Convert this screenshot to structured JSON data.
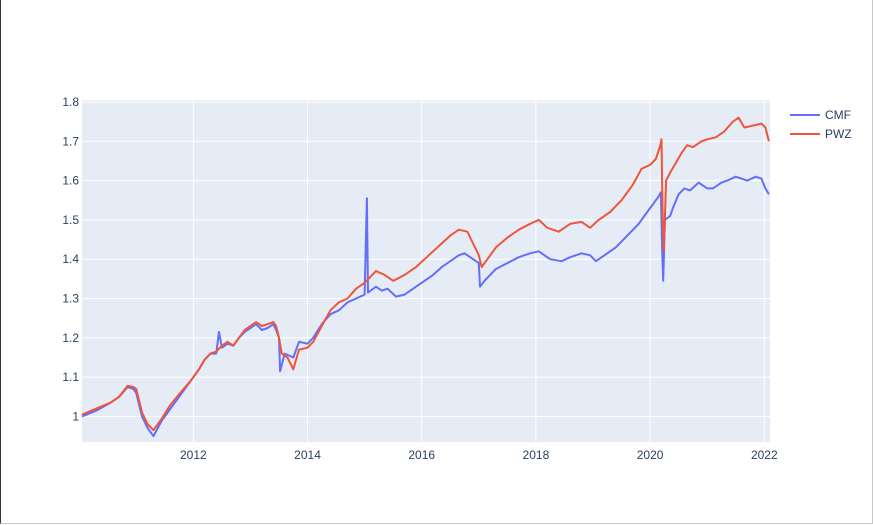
{
  "chart_data": {
    "type": "line",
    "title": "",
    "xlabel": "",
    "ylabel": "",
    "x_ticks": [
      "2012",
      "2014",
      "2016",
      "2018",
      "2020",
      "2022"
    ],
    "y_ticks": [
      "1",
      "1.1",
      "1.2",
      "1.3",
      "1.4",
      "1.5",
      "1.6",
      "1.7",
      "1.8"
    ],
    "xlim": [
      2010.05,
      2022.1
    ],
    "ylim": [
      0.935,
      1.805
    ],
    "grid": true,
    "legend_position": "top-right",
    "series": [
      {
        "name": "CMF",
        "color": "#636efa",
        "points": [
          [
            2010.05,
            1.0
          ],
          [
            2010.3,
            1.015
          ],
          [
            2010.55,
            1.035
          ],
          [
            2010.7,
            1.05
          ],
          [
            2010.85,
            1.075
          ],
          [
            2010.95,
            1.07
          ],
          [
            2011.0,
            1.06
          ],
          [
            2011.1,
            1.0
          ],
          [
            2011.2,
            0.97
          ],
          [
            2011.3,
            0.95
          ],
          [
            2011.45,
            0.99
          ],
          [
            2011.6,
            1.02
          ],
          [
            2011.8,
            1.06
          ],
          [
            2011.95,
            1.09
          ],
          [
            2012.1,
            1.12
          ],
          [
            2012.2,
            1.145
          ],
          [
            2012.3,
            1.16
          ],
          [
            2012.4,
            1.16
          ],
          [
            2012.45,
            1.215
          ],
          [
            2012.5,
            1.175
          ],
          [
            2012.6,
            1.185
          ],
          [
            2012.7,
            1.18
          ],
          [
            2012.8,
            1.2
          ],
          [
            2012.9,
            1.215
          ],
          [
            2013.0,
            1.225
          ],
          [
            2013.1,
            1.235
          ],
          [
            2013.2,
            1.22
          ],
          [
            2013.3,
            1.225
          ],
          [
            2013.4,
            1.235
          ],
          [
            2013.45,
            1.22
          ],
          [
            2013.5,
            1.2
          ],
          [
            2013.52,
            1.115
          ],
          [
            2013.6,
            1.16
          ],
          [
            2013.75,
            1.15
          ],
          [
            2013.85,
            1.19
          ],
          [
            2014.0,
            1.185
          ],
          [
            2014.1,
            1.2
          ],
          [
            2014.25,
            1.235
          ],
          [
            2014.4,
            1.26
          ],
          [
            2014.55,
            1.27
          ],
          [
            2014.7,
            1.29
          ],
          [
            2014.85,
            1.3
          ],
          [
            2015.0,
            1.31
          ],
          [
            2015.04,
            1.555
          ],
          [
            2015.06,
            1.315
          ],
          [
            2015.2,
            1.33
          ],
          [
            2015.3,
            1.32
          ],
          [
            2015.4,
            1.325
          ],
          [
            2015.55,
            1.305
          ],
          [
            2015.7,
            1.31
          ],
          [
            2015.9,
            1.33
          ],
          [
            2016.05,
            1.345
          ],
          [
            2016.2,
            1.36
          ],
          [
            2016.35,
            1.38
          ],
          [
            2016.5,
            1.395
          ],
          [
            2016.65,
            1.41
          ],
          [
            2016.75,
            1.415
          ],
          [
            2016.9,
            1.4
          ],
          [
            2017.0,
            1.39
          ],
          [
            2017.02,
            1.33
          ],
          [
            2017.1,
            1.345
          ],
          [
            2017.3,
            1.375
          ],
          [
            2017.5,
            1.39
          ],
          [
            2017.7,
            1.405
          ],
          [
            2017.9,
            1.415
          ],
          [
            2018.05,
            1.42
          ],
          [
            2018.15,
            1.41
          ],
          [
            2018.25,
            1.4
          ],
          [
            2018.45,
            1.395
          ],
          [
            2018.6,
            1.405
          ],
          [
            2018.8,
            1.415
          ],
          [
            2018.95,
            1.41
          ],
          [
            2019.05,
            1.395
          ],
          [
            2019.2,
            1.41
          ],
          [
            2019.4,
            1.43
          ],
          [
            2019.6,
            1.46
          ],
          [
            2019.8,
            1.49
          ],
          [
            2019.95,
            1.52
          ],
          [
            2020.05,
            1.54
          ],
          [
            2020.15,
            1.56
          ],
          [
            2020.19,
            1.57
          ],
          [
            2020.21,
            1.43
          ],
          [
            2020.23,
            1.345
          ],
          [
            2020.26,
            1.5
          ],
          [
            2020.35,
            1.51
          ],
          [
            2020.4,
            1.53
          ],
          [
            2020.5,
            1.565
          ],
          [
            2020.6,
            1.58
          ],
          [
            2020.7,
            1.575
          ],
          [
            2020.85,
            1.595
          ],
          [
            2021.0,
            1.58
          ],
          [
            2021.1,
            1.58
          ],
          [
            2021.25,
            1.595
          ],
          [
            2021.35,
            1.6
          ],
          [
            2021.5,
            1.61
          ],
          [
            2021.7,
            1.6
          ],
          [
            2021.85,
            1.61
          ],
          [
            2021.95,
            1.605
          ],
          [
            2022.02,
            1.58
          ],
          [
            2022.08,
            1.565
          ]
        ]
      },
      {
        "name": "PWZ",
        "color": "#ef553b",
        "points": [
          [
            2010.05,
            1.005
          ],
          [
            2010.3,
            1.02
          ],
          [
            2010.55,
            1.035
          ],
          [
            2010.7,
            1.05
          ],
          [
            2010.85,
            1.078
          ],
          [
            2010.95,
            1.075
          ],
          [
            2011.0,
            1.07
          ],
          [
            2011.1,
            1.01
          ],
          [
            2011.2,
            0.98
          ],
          [
            2011.3,
            0.965
          ],
          [
            2011.45,
            0.995
          ],
          [
            2011.6,
            1.03
          ],
          [
            2011.8,
            1.065
          ],
          [
            2011.95,
            1.09
          ],
          [
            2012.1,
            1.12
          ],
          [
            2012.2,
            1.145
          ],
          [
            2012.3,
            1.16
          ],
          [
            2012.4,
            1.165
          ],
          [
            2012.5,
            1.18
          ],
          [
            2012.6,
            1.19
          ],
          [
            2012.7,
            1.18
          ],
          [
            2012.8,
            1.2
          ],
          [
            2012.9,
            1.22
          ],
          [
            2013.0,
            1.23
          ],
          [
            2013.1,
            1.24
          ],
          [
            2013.2,
            1.23
          ],
          [
            2013.3,
            1.235
          ],
          [
            2013.4,
            1.24
          ],
          [
            2013.45,
            1.23
          ],
          [
            2013.5,
            1.2
          ],
          [
            2013.55,
            1.16
          ],
          [
            2013.65,
            1.15
          ],
          [
            2013.75,
            1.12
          ],
          [
            2013.85,
            1.17
          ],
          [
            2014.0,
            1.175
          ],
          [
            2014.1,
            1.19
          ],
          [
            2014.25,
            1.23
          ],
          [
            2014.4,
            1.27
          ],
          [
            2014.55,
            1.29
          ],
          [
            2014.7,
            1.3
          ],
          [
            2014.85,
            1.325
          ],
          [
            2015.0,
            1.34
          ],
          [
            2015.1,
            1.355
          ],
          [
            2015.2,
            1.37
          ],
          [
            2015.35,
            1.36
          ],
          [
            2015.5,
            1.345
          ],
          [
            2015.7,
            1.36
          ],
          [
            2015.9,
            1.38
          ],
          [
            2016.05,
            1.4
          ],
          [
            2016.2,
            1.42
          ],
          [
            2016.35,
            1.44
          ],
          [
            2016.5,
            1.46
          ],
          [
            2016.65,
            1.475
          ],
          [
            2016.8,
            1.47
          ],
          [
            2016.9,
            1.44
          ],
          [
            2017.0,
            1.41
          ],
          [
            2017.05,
            1.38
          ],
          [
            2017.15,
            1.4
          ],
          [
            2017.3,
            1.43
          ],
          [
            2017.5,
            1.455
          ],
          [
            2017.7,
            1.475
          ],
          [
            2017.9,
            1.49
          ],
          [
            2018.05,
            1.5
          ],
          [
            2018.2,
            1.48
          ],
          [
            2018.4,
            1.47
          ],
          [
            2018.6,
            1.49
          ],
          [
            2018.8,
            1.495
          ],
          [
            2018.95,
            1.48
          ],
          [
            2019.1,
            1.5
          ],
          [
            2019.3,
            1.52
          ],
          [
            2019.5,
            1.55
          ],
          [
            2019.7,
            1.59
          ],
          [
            2019.85,
            1.63
          ],
          [
            2020.0,
            1.64
          ],
          [
            2020.1,
            1.655
          ],
          [
            2020.18,
            1.69
          ],
          [
            2020.2,
            1.705
          ],
          [
            2020.22,
            1.5
          ],
          [
            2020.24,
            1.42
          ],
          [
            2020.28,
            1.6
          ],
          [
            2020.35,
            1.62
          ],
          [
            2020.45,
            1.645
          ],
          [
            2020.55,
            1.67
          ],
          [
            2020.65,
            1.69
          ],
          [
            2020.75,
            1.685
          ],
          [
            2020.9,
            1.7
          ],
          [
            2021.0,
            1.705
          ],
          [
            2021.15,
            1.71
          ],
          [
            2021.3,
            1.725
          ],
          [
            2021.45,
            1.75
          ],
          [
            2021.55,
            1.76
          ],
          [
            2021.65,
            1.735
          ],
          [
            2021.8,
            1.74
          ],
          [
            2021.95,
            1.745
          ],
          [
            2022.02,
            1.735
          ],
          [
            2022.08,
            1.7
          ]
        ]
      }
    ]
  }
}
